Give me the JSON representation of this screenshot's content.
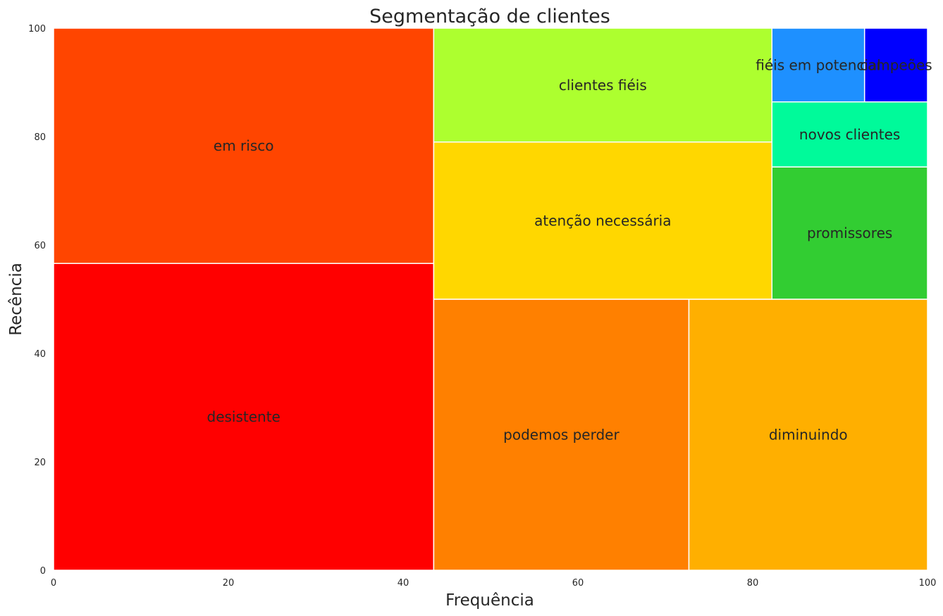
{
  "chart_data": {
    "type": "treemap",
    "title": "Segmentação de clientes",
    "xlabel": "Frequência",
    "ylabel": "Recência",
    "xlim": [
      0,
      100
    ],
    "ylim": [
      0,
      100
    ],
    "xticks": [
      "0",
      "20",
      "40",
      "60",
      "80",
      "100"
    ],
    "yticks": [
      "0",
      "20",
      "40",
      "60",
      "80",
      "100"
    ],
    "grid": false,
    "segments": [
      {
        "label": "desistente",
        "x0": 0,
        "x1": 43.5,
        "y0": 0,
        "y1": 56.6,
        "color": "#FF0000"
      },
      {
        "label": "em risco",
        "x0": 0,
        "x1": 43.5,
        "y0": 56.6,
        "y1": 100,
        "color": "#FF4500"
      },
      {
        "label": "podemos perder",
        "x0": 43.5,
        "x1": 72.7,
        "y0": 0,
        "y1": 50,
        "color": "#FF8000"
      },
      {
        "label": "diminuindo",
        "x0": 72.7,
        "x1": 100,
        "y0": 0,
        "y1": 50,
        "color": "#FFAF00"
      },
      {
        "label": "atenção necessária",
        "x0": 43.5,
        "x1": 82.2,
        "y0": 50,
        "y1": 79,
        "color": "#FFD700"
      },
      {
        "label": "clientes fiéis",
        "x0": 43.5,
        "x1": 82.2,
        "y0": 79,
        "y1": 100,
        "color": "#ADFF2F"
      },
      {
        "label": "promissores",
        "x0": 82.2,
        "x1": 100,
        "y0": 50,
        "y1": 74.4,
        "color": "#32CD32"
      },
      {
        "label": "novos clientes",
        "x0": 82.2,
        "x1": 100,
        "y0": 74.4,
        "y1": 86.4,
        "color": "#00FA9A"
      },
      {
        "label": "fiéis em potencial",
        "x0": 82.2,
        "x1": 92.8,
        "y0": 86.4,
        "y1": 100,
        "color": "#1E90FF"
      },
      {
        "label": "campeões",
        "x0": 92.8,
        "x1": 100,
        "y0": 86.4,
        "y1": 100,
        "color": "#0000FF"
      }
    ]
  }
}
